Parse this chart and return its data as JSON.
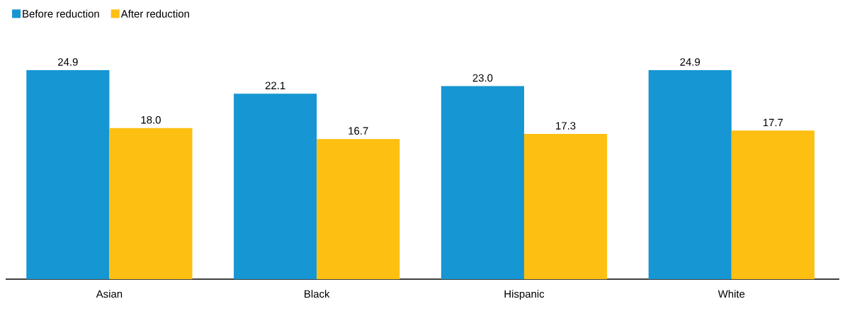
{
  "chart_data": {
    "type": "bar",
    "categories": [
      "Asian",
      "Black",
      "Hispanic",
      "White"
    ],
    "series": [
      {
        "name": "Before reduction",
        "color": "#1696d2",
        "values": [
          24.9,
          22.1,
          23.0,
          24.9
        ],
        "value_labels": [
          "24.9",
          "22.1",
          "23.0",
          "24.9"
        ]
      },
      {
        "name": "After reduction",
        "color": "#fdbf11",
        "values": [
          18.0,
          16.7,
          17.3,
          17.7
        ],
        "value_labels": [
          "18.0",
          "16.7",
          "17.3",
          "17.7"
        ]
      }
    ],
    "legend": "top left"
  }
}
